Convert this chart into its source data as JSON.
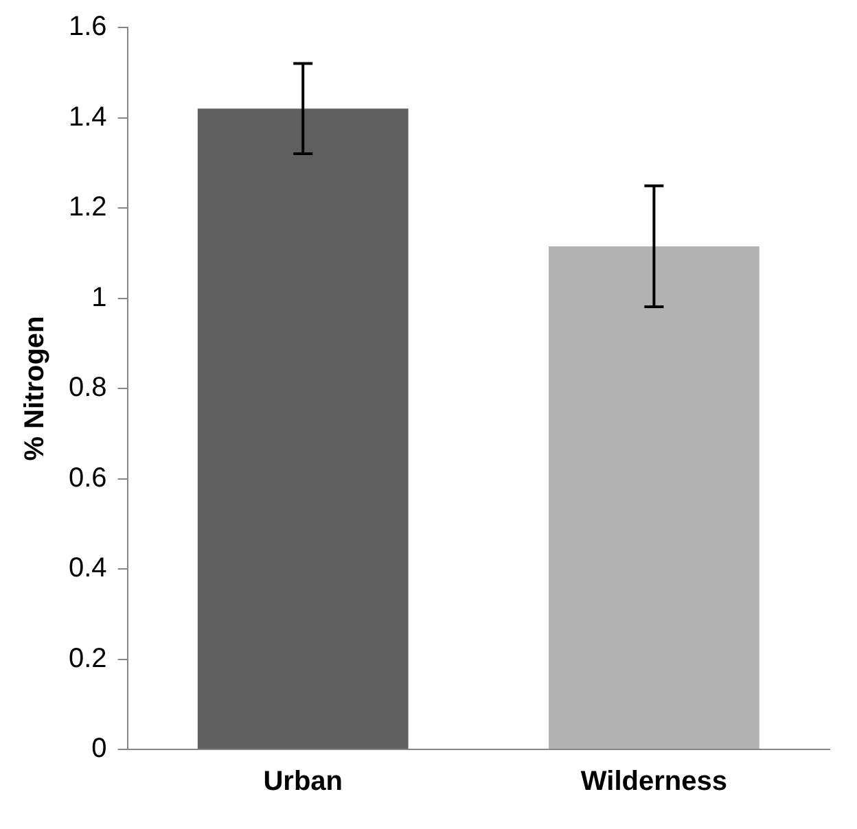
{
  "chart_data": {
    "type": "bar",
    "ylabel": "% Nitrogen",
    "categories": [
      "Urban",
      "Wilderness"
    ],
    "values": [
      1.42,
      1.115
    ],
    "colors": [
      "#5f5f5f",
      "#b2b2b2"
    ],
    "errors": [
      0.1,
      0.134
    ],
    "ylim": [
      0,
      1.6
    ],
    "yticks": [
      0,
      0.2,
      0.4,
      0.6,
      0.8,
      1,
      1.2,
      1.4,
      1.6
    ],
    "grid": false,
    "legend": false
  }
}
